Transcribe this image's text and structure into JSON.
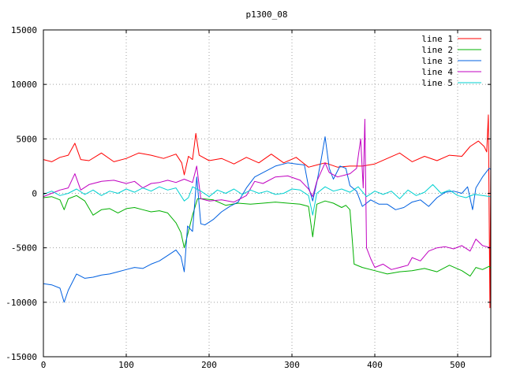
{
  "chart_data": {
    "type": "line",
    "title": "p1300_08",
    "xlabel": "",
    "ylabel": "",
    "xlim": [
      0,
      540
    ],
    "ylim": [
      -15000,
      15000
    ],
    "xticks": [
      0,
      100,
      200,
      300,
      400,
      500
    ],
    "yticks": [
      -15000,
      -10000,
      -5000,
      0,
      5000,
      10000,
      15000
    ],
    "grid": true,
    "legend_position": "top-right",
    "series": [
      {
        "name": "line 1",
        "color": "#ff0000",
        "points": [
          [
            0,
            3100
          ],
          [
            10,
            2900
          ],
          [
            20,
            3300
          ],
          [
            30,
            3500
          ],
          [
            38,
            4600
          ],
          [
            45,
            3100
          ],
          [
            55,
            3000
          ],
          [
            70,
            3700
          ],
          [
            85,
            2900
          ],
          [
            100,
            3200
          ],
          [
            115,
            3700
          ],
          [
            130,
            3500
          ],
          [
            145,
            3200
          ],
          [
            160,
            3600
          ],
          [
            167,
            2800
          ],
          [
            170,
            1700
          ],
          [
            175,
            3400
          ],
          [
            180,
            3100
          ],
          [
            184,
            5500
          ],
          [
            188,
            3500
          ],
          [
            200,
            3000
          ],
          [
            215,
            3200
          ],
          [
            230,
            2700
          ],
          [
            245,
            3300
          ],
          [
            260,
            2800
          ],
          [
            275,
            3600
          ],
          [
            290,
            2800
          ],
          [
            305,
            3300
          ],
          [
            320,
            2400
          ],
          [
            330,
            2600
          ],
          [
            340,
            2800
          ],
          [
            355,
            2400
          ],
          [
            370,
            2500
          ],
          [
            385,
            2500
          ],
          [
            400,
            2700
          ],
          [
            415,
            3200
          ],
          [
            430,
            3700
          ],
          [
            445,
            2900
          ],
          [
            460,
            3400
          ],
          [
            475,
            3000
          ],
          [
            490,
            3500
          ],
          [
            505,
            3400
          ],
          [
            515,
            4300
          ],
          [
            525,
            4800
          ],
          [
            532,
            4300
          ],
          [
            535,
            3800
          ],
          [
            537,
            7200
          ],
          [
            539,
            -10500
          ],
          [
            540,
            3500
          ]
        ]
      },
      {
        "name": "line 2",
        "color": "#00b000",
        "points": [
          [
            0,
            -400
          ],
          [
            10,
            -300
          ],
          [
            20,
            -600
          ],
          [
            25,
            -1500
          ],
          [
            30,
            -500
          ],
          [
            40,
            -200
          ],
          [
            50,
            -700
          ],
          [
            60,
            -2000
          ],
          [
            70,
            -1500
          ],
          [
            80,
            -1400
          ],
          [
            90,
            -1800
          ],
          [
            100,
            -1400
          ],
          [
            110,
            -1300
          ],
          [
            120,
            -1500
          ],
          [
            130,
            -1700
          ],
          [
            140,
            -1600
          ],
          [
            150,
            -1800
          ],
          [
            160,
            -2700
          ],
          [
            166,
            -3600
          ],
          [
            170,
            -5000
          ],
          [
            175,
            -3500
          ],
          [
            180,
            -2000
          ],
          [
            186,
            -500
          ],
          [
            192,
            -500
          ],
          [
            205,
            -600
          ],
          [
            220,
            -1100
          ],
          [
            235,
            -900
          ],
          [
            250,
            -1000
          ],
          [
            265,
            -900
          ],
          [
            280,
            -800
          ],
          [
            295,
            -900
          ],
          [
            310,
            -1000
          ],
          [
            320,
            -1200
          ],
          [
            325,
            -4000
          ],
          [
            330,
            -1000
          ],
          [
            340,
            -700
          ],
          [
            350,
            -900
          ],
          [
            360,
            -1300
          ],
          [
            365,
            -1100
          ],
          [
            370,
            -1500
          ],
          [
            375,
            -6500
          ],
          [
            385,
            -6800
          ],
          [
            400,
            -7100
          ],
          [
            415,
            -7400
          ],
          [
            430,
            -7200
          ],
          [
            445,
            -7100
          ],
          [
            460,
            -6900
          ],
          [
            475,
            -7200
          ],
          [
            490,
            -6600
          ],
          [
            505,
            -7100
          ],
          [
            515,
            -7600
          ],
          [
            522,
            -6800
          ],
          [
            530,
            -7000
          ],
          [
            538,
            -6700
          ],
          [
            540,
            -6900
          ]
        ]
      },
      {
        "name": "line 3",
        "color": "#0060e0",
        "points": [
          [
            0,
            -8300
          ],
          [
            10,
            -8400
          ],
          [
            20,
            -8700
          ],
          [
            25,
            -10000
          ],
          [
            30,
            -8900
          ],
          [
            40,
            -7400
          ],
          [
            50,
            -7800
          ],
          [
            60,
            -7700
          ],
          [
            70,
            -7500
          ],
          [
            80,
            -7400
          ],
          [
            90,
            -7200
          ],
          [
            100,
            -7000
          ],
          [
            110,
            -6800
          ],
          [
            120,
            -6900
          ],
          [
            130,
            -6500
          ],
          [
            140,
            -6200
          ],
          [
            150,
            -5700
          ],
          [
            160,
            -5200
          ],
          [
            166,
            -5800
          ],
          [
            170,
            -7200
          ],
          [
            174,
            -3000
          ],
          [
            180,
            -3500
          ],
          [
            185,
            1500
          ],
          [
            190,
            -2800
          ],
          [
            195,
            -2900
          ],
          [
            205,
            -2400
          ],
          [
            215,
            -1700
          ],
          [
            225,
            -1200
          ],
          [
            235,
            -800
          ],
          [
            245,
            500
          ],
          [
            255,
            1500
          ],
          [
            265,
            1900
          ],
          [
            280,
            2500
          ],
          [
            295,
            2800
          ],
          [
            305,
            2700
          ],
          [
            315,
            2600
          ],
          [
            320,
            600
          ],
          [
            325,
            -700
          ],
          [
            330,
            1000
          ],
          [
            335,
            3000
          ],
          [
            340,
            5200
          ],
          [
            345,
            2300
          ],
          [
            350,
            1300
          ],
          [
            358,
            2500
          ],
          [
            365,
            2300
          ],
          [
            370,
            700
          ],
          [
            378,
            200
          ],
          [
            385,
            -1200
          ],
          [
            395,
            -600
          ],
          [
            405,
            -1000
          ],
          [
            415,
            -1000
          ],
          [
            425,
            -1500
          ],
          [
            435,
            -1300
          ],
          [
            445,
            -800
          ],
          [
            455,
            -600
          ],
          [
            465,
            -1200
          ],
          [
            475,
            -400
          ],
          [
            485,
            100
          ],
          [
            495,
            200
          ],
          [
            505,
            0
          ],
          [
            512,
            600
          ],
          [
            518,
            -1500
          ],
          [
            522,
            500
          ],
          [
            530,
            1500
          ],
          [
            538,
            2300
          ],
          [
            540,
            2200
          ]
        ]
      },
      {
        "name": "line 4",
        "color": "#c000c0",
        "points": [
          [
            0,
            -300
          ],
          [
            10,
            0
          ],
          [
            20,
            300
          ],
          [
            30,
            500
          ],
          [
            38,
            1800
          ],
          [
            45,
            300
          ],
          [
            55,
            800
          ],
          [
            70,
            1100
          ],
          [
            85,
            1200
          ],
          [
            100,
            900
          ],
          [
            110,
            1100
          ],
          [
            120,
            500
          ],
          [
            130,
            900
          ],
          [
            140,
            1000
          ],
          [
            150,
            1200
          ],
          [
            160,
            1000
          ],
          [
            170,
            1300
          ],
          [
            180,
            1000
          ],
          [
            185,
            2500
          ],
          [
            190,
            -500
          ],
          [
            200,
            -700
          ],
          [
            215,
            -600
          ],
          [
            230,
            -800
          ],
          [
            245,
            -200
          ],
          [
            255,
            1100
          ],
          [
            265,
            900
          ],
          [
            280,
            1500
          ],
          [
            295,
            1600
          ],
          [
            310,
            1200
          ],
          [
            320,
            400
          ],
          [
            325,
            -300
          ],
          [
            330,
            1100
          ],
          [
            340,
            2800
          ],
          [
            345,
            1900
          ],
          [
            355,
            1500
          ],
          [
            370,
            1800
          ],
          [
            378,
            2300
          ],
          [
            383,
            5000
          ],
          [
            386,
            500
          ],
          [
            388,
            6800
          ],
          [
            390,
            -5000
          ],
          [
            395,
            -6000
          ],
          [
            400,
            -6800
          ],
          [
            410,
            -6500
          ],
          [
            420,
            -7000
          ],
          [
            430,
            -6800
          ],
          [
            440,
            -6600
          ],
          [
            445,
            -5900
          ],
          [
            455,
            -6200
          ],
          [
            465,
            -5300
          ],
          [
            475,
            -5000
          ],
          [
            485,
            -4900
          ],
          [
            495,
            -5100
          ],
          [
            505,
            -4800
          ],
          [
            515,
            -5300
          ],
          [
            522,
            -4200
          ],
          [
            530,
            -4800
          ],
          [
            540,
            -5000
          ]
        ]
      },
      {
        "name": "line 5",
        "color": "#00d0d0",
        "points": [
          [
            0,
            -100
          ],
          [
            10,
            200
          ],
          [
            20,
            -200
          ],
          [
            30,
            0
          ],
          [
            40,
            400
          ],
          [
            50,
            -100
          ],
          [
            60,
            300
          ],
          [
            70,
            -200
          ],
          [
            80,
            200
          ],
          [
            90,
            0
          ],
          [
            100,
            400
          ],
          [
            110,
            100
          ],
          [
            120,
            500
          ],
          [
            130,
            200
          ],
          [
            140,
            600
          ],
          [
            150,
            300
          ],
          [
            160,
            500
          ],
          [
            170,
            -700
          ],
          [
            175,
            -400
          ],
          [
            180,
            600
          ],
          [
            190,
            200
          ],
          [
            200,
            -300
          ],
          [
            210,
            300
          ],
          [
            220,
            0
          ],
          [
            230,
            400
          ],
          [
            240,
            -100
          ],
          [
            250,
            300
          ],
          [
            260,
            0
          ],
          [
            270,
            200
          ],
          [
            280,
            -100
          ],
          [
            290,
            0
          ],
          [
            300,
            400
          ],
          [
            310,
            300
          ],
          [
            320,
            -200
          ],
          [
            325,
            -2000
          ],
          [
            330,
            0
          ],
          [
            340,
            600
          ],
          [
            350,
            200
          ],
          [
            360,
            400
          ],
          [
            370,
            100
          ],
          [
            380,
            600
          ],
          [
            390,
            -300
          ],
          [
            400,
            200
          ],
          [
            410,
            -100
          ],
          [
            420,
            200
          ],
          [
            430,
            -500
          ],
          [
            440,
            300
          ],
          [
            450,
            -200
          ],
          [
            460,
            100
          ],
          [
            470,
            800
          ],
          [
            480,
            0
          ],
          [
            490,
            300
          ],
          [
            500,
            -200
          ],
          [
            510,
            -400
          ],
          [
            520,
            -100
          ],
          [
            530,
            -200
          ],
          [
            540,
            -300
          ]
        ]
      }
    ]
  }
}
